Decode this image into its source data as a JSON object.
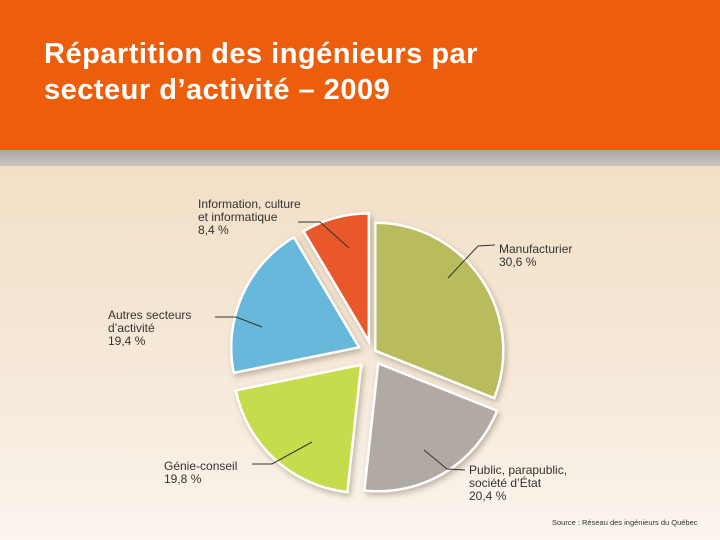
{
  "header": {
    "title_line1": "Répartition des ingénieurs par",
    "title_line2": "secteur d’activité – 2009"
  },
  "source": "Source : Réseau des ingénieurs du Québec",
  "colors": {
    "header_bg": "#ec5e0c",
    "manufacturier": "#b9bc5c",
    "public": "#b1aaa3",
    "genie": "#c7dc4e",
    "autres": "#68b8dc",
    "information": "#e8582a"
  },
  "chart_data": {
    "type": "pie",
    "title": "Répartition des ingénieurs par secteur d’activité – 2009",
    "unit": "%",
    "slices": [
      {
        "key": "manufacturier",
        "lines": [
          "Manufacturier"
        ],
        "label": "30,6 %",
        "value": 30.6,
        "color": "#b9bc5c"
      },
      {
        "key": "public",
        "lines": [
          "Public, parapublic,",
          "société d’État"
        ],
        "label": "20,4 %",
        "value": 20.4,
        "color": "#b1aaa3"
      },
      {
        "key": "genie",
        "lines": [
          "Génie-conseil"
        ],
        "label": "19,8 %",
        "value": 19.8,
        "color": "#c7dc4e"
      },
      {
        "key": "autres",
        "lines": [
          "Autres secteurs",
          "d’activité"
        ],
        "label": "19,4 %",
        "value": 19.4,
        "color": "#68b8dc"
      },
      {
        "key": "information",
        "lines": [
          "Information, culture",
          "et informatique"
        ],
        "label": "8,4 %",
        "value": 8.4,
        "color": "#e8582a"
      }
    ]
  }
}
